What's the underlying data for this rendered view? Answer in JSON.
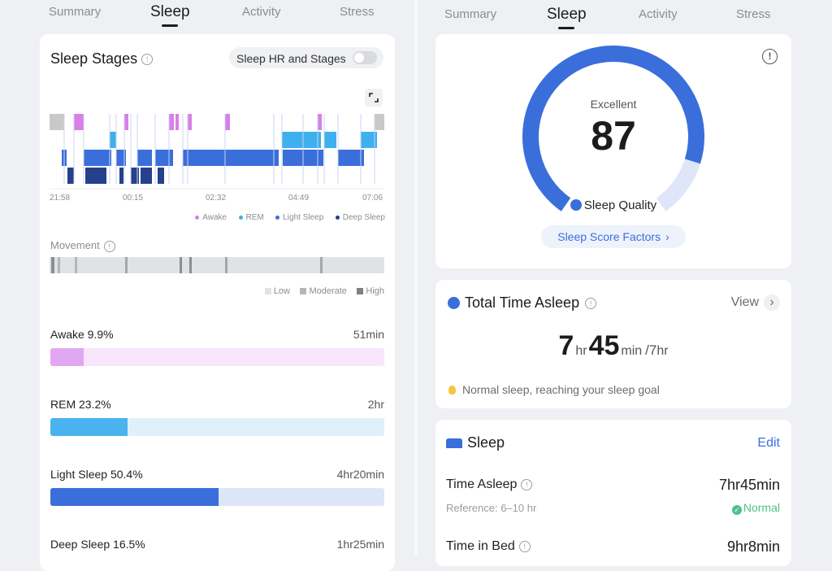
{
  "left": {
    "tabs": [
      "Summary",
      "Sleep",
      "Activity",
      "Stress"
    ],
    "active_tab": "Sleep",
    "sleep_stages": {
      "title": "Sleep Stages",
      "toggle_label": "Sleep HR and Stages",
      "toggle_on": false,
      "times": [
        "21:58",
        "00:15",
        "02:32",
        "04:49",
        "07:06"
      ],
      "legend": [
        {
          "label": "Awake",
          "color": "#d97fe8"
        },
        {
          "label": "REM",
          "color": "#3fb0ee"
        },
        {
          "label": "Light Sleep",
          "color": "#3a6edb"
        },
        {
          "label": "Deep Sleep",
          "color": "#27408b"
        }
      ]
    },
    "movement": {
      "title": "Movement",
      "legend": [
        "Low",
        "Moderate",
        "High"
      ]
    },
    "stages": [
      {
        "label": "Awake 9.9%",
        "duration": "51min",
        "fraction": 0.099,
        "fill": "#e1a7f2",
        "track": "#f6e5fb"
      },
      {
        "label": "REM 23.2%",
        "duration": "2hr",
        "fraction": 0.232,
        "fill": "#48b3ef",
        "track": "#dff0fb"
      },
      {
        "label": "Light Sleep 50.4%",
        "duration": "4hr20min",
        "fraction": 0.504,
        "fill": "#3a6edb",
        "track": "#dde6f8"
      },
      {
        "label": "Deep Sleep 16.5%",
        "duration": "1hr25min",
        "fraction": 0.165,
        "fill": "#27408b",
        "track": "#dfe3ee"
      }
    ]
  },
  "right": {
    "tabs": [
      "Summary",
      "Sleep",
      "Activity",
      "Stress"
    ],
    "active_tab": "Sleep",
    "score": {
      "rating": "Excellent",
      "value": "87",
      "label": "Sleep Quality",
      "fraction": 0.87,
      "factors_button": "Sleep Score Factors"
    },
    "total_time": {
      "title": "Total Time Asleep",
      "view_label": "View",
      "hours": "7",
      "hr_unit": "hr",
      "minutes": "45",
      "min_unit": "min",
      "goal": "/7",
      "goal_unit": "hr",
      "note": "Normal sleep, reaching your sleep goal"
    },
    "sleep_detail": {
      "title": "Sleep",
      "edit_label": "Edit",
      "time_asleep_label": "Time Asleep",
      "time_asleep_value": "7hr45min",
      "reference": "Reference: 6–10 hr",
      "status": "Normal",
      "time_in_bed_label": "Time in Bed",
      "time_in_bed_value": "9hr8min"
    }
  }
}
